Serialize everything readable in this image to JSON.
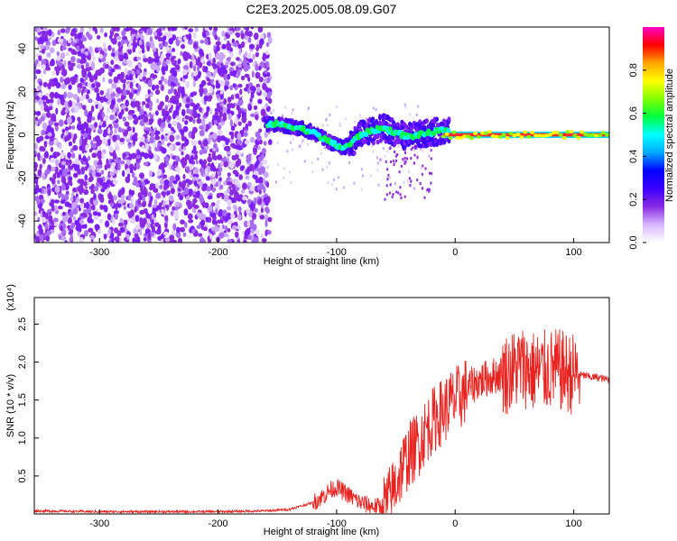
{
  "chart_data": [
    {
      "type": "heatmap",
      "title": "C2E3.2025.005.08.09.G07",
      "xlabel": "Height of straight line (km)",
      "ylabel": "Frequency (Hz)",
      "xlim": [
        -355,
        130
      ],
      "ylim": [
        -50,
        50
      ],
      "x_ticks": [
        -300,
        -200,
        -100,
        0,
        100
      ],
      "y_ticks": [
        -40,
        -20,
        0,
        20,
        40
      ],
      "noise_region_x": [
        -355,
        -160
      ],
      "signal_track": {
        "x": [
          -160,
          -150,
          -140,
          -130,
          -120,
          -110,
          -100,
          -95,
          -90,
          -80,
          -70,
          -60,
          -50,
          -40,
          -30,
          -20,
          -10,
          0,
          20,
          40,
          60,
          80,
          100,
          130
        ],
        "y": [
          5,
          5,
          4,
          3,
          1,
          -2,
          -5,
          -6,
          -5,
          0,
          2,
          3,
          1,
          -1,
          0,
          1,
          2,
          1,
          0,
          0,
          0,
          0,
          0,
          0
        ]
      },
      "colorbar": {
        "label": "Normalized spectral amplitude",
        "range": [
          0.0,
          1.0
        ],
        "ticks": [
          "0.0",
          "0.2",
          "0.4",
          "0.6",
          "0.8"
        ],
        "colors": [
          "#ffffff",
          "#d8b8ff",
          "#8a2be2",
          "#3b00ff",
          "#0000ff",
          "#00aaff",
          "#00ffff",
          "#00ff40",
          "#80ff00",
          "#ffff00",
          "#ffa500",
          "#ff0000",
          "#ff00c8"
        ]
      },
      "grid": false,
      "legend": "none"
    },
    {
      "type": "line",
      "title": "",
      "xlabel": "Height of straight line (km)",
      "ylabel": "SNR (10 * v/v)",
      "y_scale_label": "(x10⁴)",
      "xlim": [
        -355,
        130
      ],
      "ylim": [
        0.0,
        2.85
      ],
      "x_ticks": [
        -300,
        -200,
        -100,
        0,
        100
      ],
      "y_ticks": [
        "0.5",
        "1.0",
        "1.5",
        "2.0",
        "2.5"
      ],
      "series": [
        {
          "color": "#e8231f",
          "x": [
            -355,
            -300,
            -250,
            -200,
            -160,
            -140,
            -120,
            -110,
            -105,
            -100,
            -95,
            -90,
            -80,
            -70,
            -60,
            -55,
            -50,
            -45,
            -40,
            -35,
            -30,
            -25,
            -20,
            -15,
            -10,
            -5,
            0,
            5,
            10,
            15,
            20,
            25,
            30,
            35,
            40,
            45,
            50,
            55,
            60,
            65,
            70,
            75,
            80,
            85,
            90,
            95,
            100,
            105,
            110,
            115,
            120,
            125,
            130
          ],
          "y": [
            0.04,
            0.03,
            0.03,
            0.03,
            0.04,
            0.06,
            0.15,
            0.25,
            0.32,
            0.35,
            0.3,
            0.25,
            0.15,
            0.1,
            0.1,
            0.2,
            0.4,
            0.6,
            0.75,
            0.85,
            0.95,
            1.1,
            1.2,
            1.3,
            1.35,
            1.45,
            1.5,
            1.55,
            1.65,
            1.7,
            1.75,
            1.78,
            1.8,
            1.83,
            1.85,
            1.85,
            1.9,
            1.95,
            1.92,
            1.88,
            1.88,
            1.88,
            1.9,
            1.9,
            1.88,
            1.85,
            1.85,
            1.83,
            1.82,
            1.8,
            1.8,
            1.78,
            1.77
          ]
        }
      ],
      "grid": false,
      "legend": "none"
    }
  ]
}
